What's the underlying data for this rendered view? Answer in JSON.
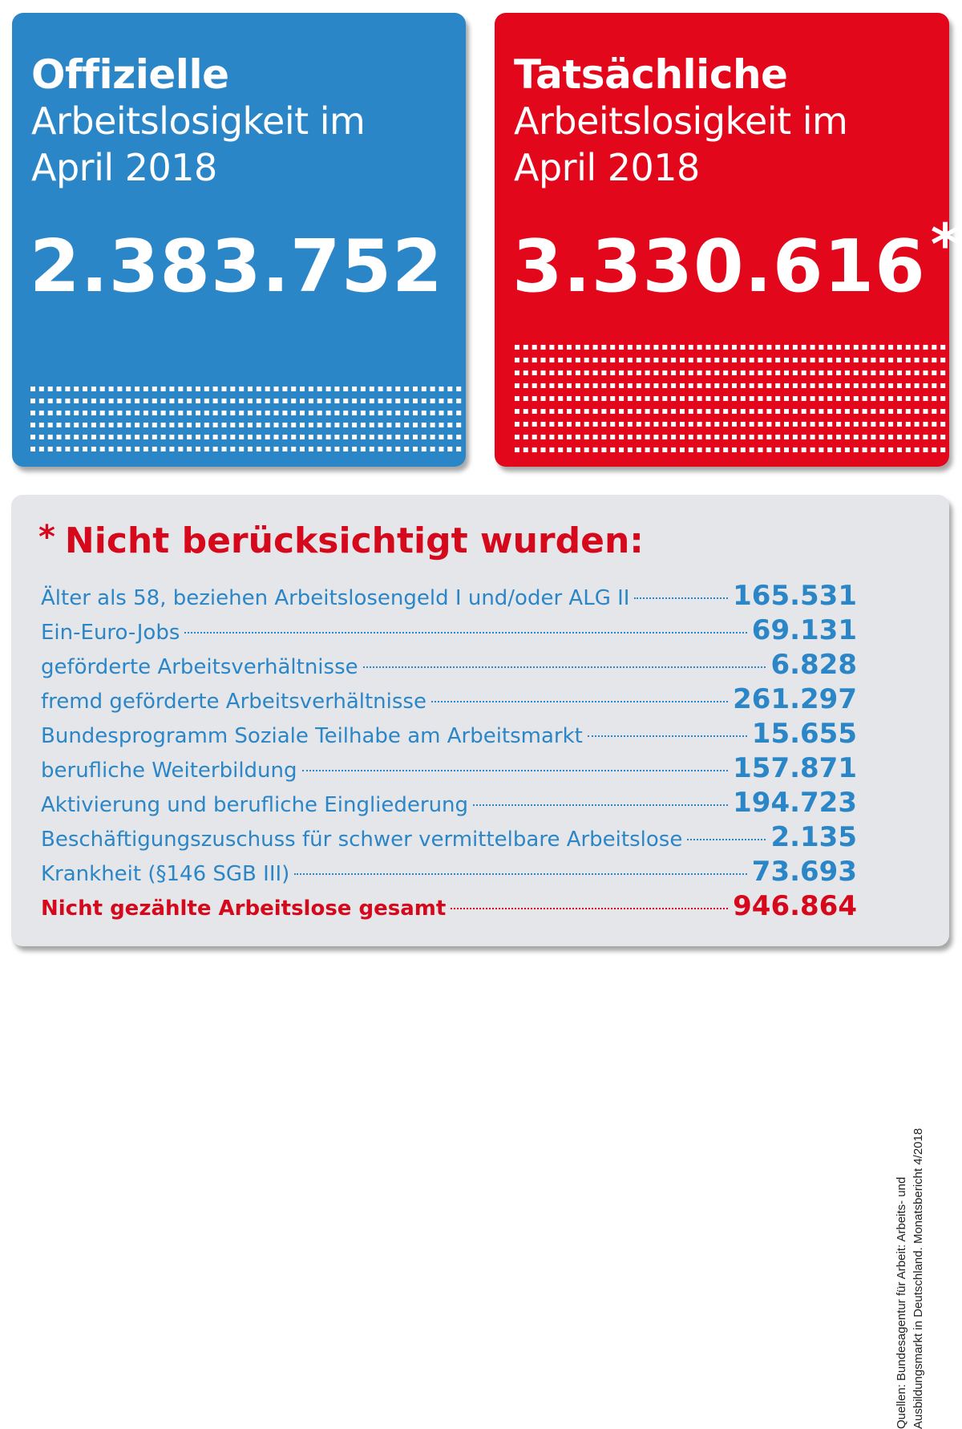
{
  "official": {
    "heading_bold": "Offizielle",
    "heading_line1": "Arbeitslosigkeit im",
    "heading_line2": "April 2018",
    "number": "2.383.752",
    "color": "#2b86c8"
  },
  "actual": {
    "heading_bold": "Tatsächliche",
    "heading_line1": "Arbeitslosigkeit im",
    "heading_line2": "April 2018",
    "number": "3.330.616",
    "asterisk": "*",
    "color": "#e2071b"
  },
  "notes": {
    "star": "*",
    "title": "Nicht berücksichtigt wurden:",
    "rows": [
      {
        "label": "Älter als 58, beziehen Arbeitslosengeld I und/oder ALG II",
        "value": "165.531"
      },
      {
        "label": "Ein-Euro-Jobs",
        "value": "69.131"
      },
      {
        "label": "geförderte Arbeitsverhältnisse",
        "value": "6.828"
      },
      {
        "label": "fremd geförderte Arbeitsverhältnisse",
        "value": "261.297"
      },
      {
        "label": "Bundesprogramm Soziale Teilhabe am Arbeitsmarkt",
        "value": "15.655"
      },
      {
        "label": "berufliche Weiterbildung",
        "value": "157.871"
      },
      {
        "label": "Aktivierung und berufliche Eingliederung",
        "value": "194.723"
      },
      {
        "label": "Beschäftigungszuschuss für schwer vermittelbare Arbeitslose",
        "value": "2.135"
      },
      {
        "label": "Krankheit (§146 SGB III)",
        "value": "73.693"
      }
    ],
    "total": {
      "label": "Nicht gezählte Arbeitslose gesamt",
      "value": "946.864"
    },
    "text_color": "#2b86c8",
    "accent_color": "#d5091b"
  },
  "source": {
    "line1": "Quellen: Bundesagentur für Arbeit: Arbeits- und",
    "line2": "Ausbildungsmarkt in Deutschland. Monatsbericht 4/2018"
  }
}
